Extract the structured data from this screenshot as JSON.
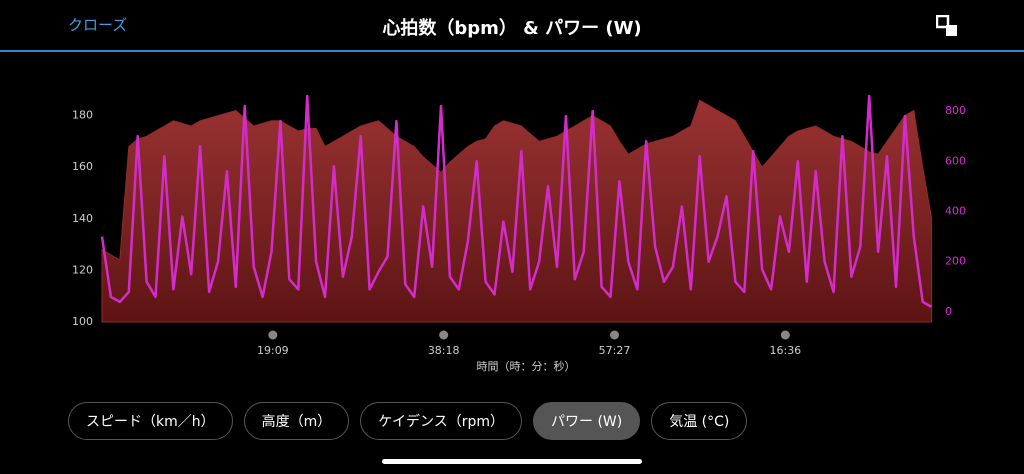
{
  "header": {
    "close": "クローズ",
    "title": "心拍数（bpm） & パワー (W)"
  },
  "chart_data": {
    "type": "line",
    "xlabel": "時間（時：分：秒）",
    "x": [
      0,
      1,
      2,
      3,
      4,
      5,
      6,
      7,
      8,
      9,
      10,
      11,
      12,
      13,
      14,
      15,
      16,
      17,
      18,
      19,
      20,
      21,
      22,
      23,
      24,
      25,
      26,
      27,
      28,
      29,
      30,
      31,
      32,
      33,
      34,
      35,
      36,
      37,
      38,
      39,
      40,
      41,
      42,
      43,
      44,
      45,
      46,
      47,
      48,
      49,
      50,
      51,
      52,
      53,
      54,
      55,
      56,
      57,
      58,
      59,
      60,
      61,
      62,
      63,
      64,
      65,
      66,
      67,
      68,
      69,
      70,
      71,
      72,
      73,
      74,
      75,
      76,
      77,
      78,
      79,
      80,
      81,
      82,
      83,
      84,
      85,
      86,
      87,
      88,
      89,
      90,
      91,
      92,
      93
    ],
    "xlim": [
      0,
      93.6
    ],
    "xticks": [
      {
        "value": 19.15,
        "label": "19:09"
      },
      {
        "value": 38.3,
        "label": "38:18"
      },
      {
        "value": 57.45,
        "label": "57:27"
      },
      {
        "value": 76.6,
        "label": "16:36"
      }
    ],
    "ylim": [
      100,
      188
    ],
    "yticks": [
      100,
      120,
      140,
      160,
      180
    ],
    "y2lim": [
      -40,
      864
    ],
    "y2ticks": [
      0,
      200,
      400,
      600,
      800
    ],
    "series": [
      {
        "color": "#8e2b2b",
        "area": true,
        "values": [
          128,
          126,
          124,
          168,
          171,
          172,
          174,
          176,
          178,
          177,
          176,
          178,
          179,
          180,
          181,
          182,
          179,
          176,
          177,
          178,
          178,
          176,
          174,
          175,
          175,
          168,
          170,
          172,
          174,
          176,
          177,
          178,
          175,
          172,
          170,
          168,
          164,
          161,
          158,
          162,
          165,
          168,
          170,
          171,
          176,
          178,
          177,
          176,
          173,
          170,
          171,
          172,
          174,
          176,
          178,
          180,
          178,
          176,
          170,
          165,
          167,
          169,
          170,
          171,
          172,
          174,
          176,
          186,
          184,
          182,
          180,
          178,
          172,
          166,
          160,
          164,
          168,
          172,
          174,
          175,
          176,
          174,
          172,
          171,
          170,
          168,
          166,
          165,
          170,
          175,
          180,
          182,
          160,
          140
        ]
      },
      {
        "color": "#d42ccc",
        "axis": "y2",
        "values": [
          300,
          60,
          40,
          80,
          700,
          120,
          60,
          620,
          90,
          380,
          150,
          660,
          80,
          200,
          560,
          100,
          820,
          180,
          60,
          240,
          760,
          130,
          90,
          860,
          200,
          60,
          580,
          140,
          300,
          700,
          90,
          160,
          220,
          760,
          110,
          60,
          420,
          180,
          820,
          140,
          90,
          280,
          600,
          120,
          70,
          360,
          160,
          640,
          90,
          200,
          500,
          180,
          780,
          130,
          240,
          800,
          100,
          60,
          520,
          200,
          90,
          680,
          260,
          120,
          180,
          420,
          90,
          620,
          200,
          300,
          460,
          120,
          80,
          640,
          170,
          90,
          380,
          240,
          600,
          120,
          560,
          200,
          80,
          700,
          140,
          260,
          860,
          240,
          620,
          100,
          780,
          300,
          40,
          20
        ]
      }
    ]
  },
  "tabs": [
    "スピード（km／h）",
    "高度（m）",
    "ケイデンス（rpm）",
    "パワー (W)",
    "気温 (°C)"
  ],
  "selected_tab": 3
}
